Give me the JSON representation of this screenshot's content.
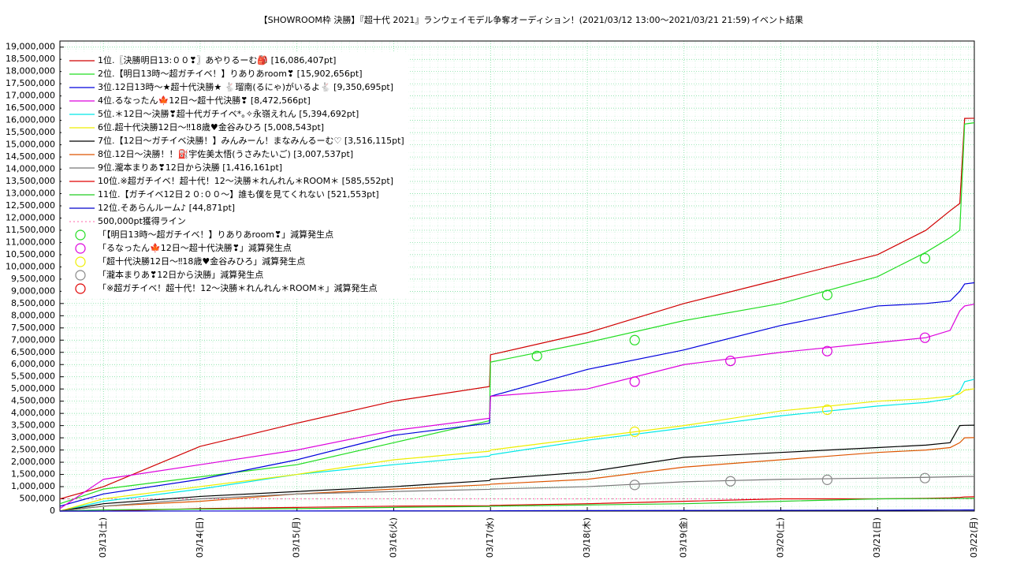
{
  "chart_data": {
    "type": "line",
    "title": "【SHOWROOM枠 決勝】『超十代 2021』ランウェイモデル争奪オーディション！(2021/03/12 13:00〜2021/03/21 21:59)",
    "subtitle": "イベント結果",
    "x": [
      12.55,
      13,
      14,
      15,
      16,
      16.99,
      17,
      18,
      19,
      20,
      21,
      21.5,
      21.75,
      21.85,
      21.9,
      22
    ],
    "xlim": [
      12.55,
      22
    ],
    "xticks": [
      {
        "value": 13,
        "label": "03/13(土)"
      },
      {
        "value": 14,
        "label": "03/14(日)"
      },
      {
        "value": 15,
        "label": "03/15(月)"
      },
      {
        "value": 16,
        "label": "03/16(火)"
      },
      {
        "value": 17,
        "label": "03/17(水)"
      },
      {
        "value": 18,
        "label": "03/18(木)"
      },
      {
        "value": 19,
        "label": "03/19(金)"
      },
      {
        "value": 20,
        "label": "03/20(土)"
      },
      {
        "value": 21,
        "label": "03/21(日)"
      },
      {
        "value": 22,
        "label": "03/22(月)"
      }
    ],
    "ylim": [
      0,
      19250000
    ],
    "yticks": [
      0,
      {
        "value": 500000,
        "label": "500,000"
      },
      {
        "value": 1000000,
        "label": "1,000,000"
      },
      {
        "value": 1500000,
        "label": "1,500,000"
      },
      {
        "value": 2000000,
        "label": "2,000,000"
      },
      {
        "value": 2500000,
        "label": "2,500,000"
      },
      {
        "value": 3000000,
        "label": "3,000,000"
      },
      {
        "value": 3500000,
        "label": "3,500,000"
      },
      {
        "value": 4000000,
        "label": "4,000,000"
      },
      {
        "value": 4500000,
        "label": "4,500,000"
      },
      {
        "value": 5000000,
        "label": "5,000,000"
      },
      {
        "value": 5500000,
        "label": "5,500,000"
      },
      {
        "value": 6000000,
        "label": "6,000,000"
      },
      {
        "value": 6500000,
        "label": "6,500,000"
      },
      {
        "value": 7000000,
        "label": "7,000,000"
      },
      {
        "value": 7500000,
        "label": "7,500,000"
      },
      {
        "value": 8000000,
        "label": "8,000,000"
      },
      {
        "value": 8500000,
        "label": "8,500,000"
      },
      {
        "value": 9000000,
        "label": "9,000,000"
      },
      {
        "value": 9500000,
        "label": "9,500,000"
      },
      {
        "value": 10000000,
        "label": "10,000,000"
      },
      {
        "value": 10500000,
        "label": "10,500,000"
      },
      {
        "value": 11000000,
        "label": "11,000,000"
      },
      {
        "value": 11500000,
        "label": "11,500,000"
      },
      {
        "value": 12000000,
        "label": "12,000,000"
      },
      {
        "value": 12500000,
        "label": "12,500,000"
      },
      {
        "value": 13000000,
        "label": "13,000,000"
      },
      {
        "value": 13500000,
        "label": "13,500,000"
      },
      {
        "value": 14000000,
        "label": "14,000,000"
      },
      {
        "value": 14500000,
        "label": "14,500,000"
      },
      {
        "value": 15000000,
        "label": "15,000,000"
      },
      {
        "value": 15500000,
        "label": "15,500,000"
      },
      {
        "value": 16000000,
        "label": "16,000,000"
      },
      {
        "value": 16500000,
        "label": "16,500,000"
      },
      {
        "value": 17000000,
        "label": "17,000,000"
      },
      {
        "value": 17500000,
        "label": "17,500,000"
      },
      {
        "value": 18000000,
        "label": "18,000,000"
      },
      {
        "value": 18500000,
        "label": "18,500,000"
      },
      {
        "value": 19000000,
        "label": "19,000,000"
      }
    ],
    "grid": true,
    "legend": "top-left",
    "series": [
      {
        "name": "1位.〖決勝明日13:００❣〗あやりるーむ🎒 [16,086,407pt]",
        "color": "#d00000",
        "values": [
          500000,
          1000000,
          2650000,
          3600000,
          4500000,
          5100000,
          6400000,
          7300000,
          8500000,
          9500000,
          10500000,
          11500000,
          12300000,
          12600000,
          16080000,
          16086407
        ]
      },
      {
        "name": "2位.【明日13時〜超ガチイベ！】りありあroom❣ [15,902,656pt]",
        "color": "#22dd22",
        "values": [
          300000,
          900000,
          1400000,
          1900000,
          2800000,
          3700000,
          6100000,
          6900000,
          7800000,
          8500000,
          9600000,
          10600000,
          11200000,
          11500000,
          15850000,
          15902656
        ]
      },
      {
        "name": "3位.12日13時〜★超十代決勝★ 🐇瑠南(るにゃ)がいるよ🐇 [9,350,695pt]",
        "color": "#0000dd",
        "values": [
          200000,
          700000,
          1300000,
          2100000,
          3100000,
          3600000,
          4700000,
          5800000,
          6600000,
          7600000,
          8400000,
          8500000,
          8600000,
          9000000,
          9300000,
          9350695
        ]
      },
      {
        "name": "4位.るなったん🍁12日〜超十代決勝❣ [8,472,566pt]",
        "color": "#dd00dd",
        "values": [
          100000,
          1300000,
          1900000,
          2500000,
          3300000,
          3800000,
          4700000,
          5000000,
          6000000,
          6500000,
          6900000,
          7100000,
          7400000,
          8200000,
          8400000,
          8472566
        ]
      },
      {
        "name": "5位.＊12日〜決勝❣超十代ガチイベ*｡✧永嶺えれん [5,394,692pt]",
        "color": "#00e8e8",
        "values": [
          0,
          400000,
          900000,
          1500000,
          1900000,
          2250000,
          2300000,
          2900000,
          3400000,
          3900000,
          4300000,
          4450000,
          4600000,
          4900000,
          5300000,
          5394692
        ]
      },
      {
        "name": "6位.超十代決勝12日〜‼18歳♥金谷みひろ [5,008,543pt]",
        "color": "#eeee00",
        "values": [
          0,
          500000,
          1000000,
          1500000,
          2100000,
          2450000,
          2500000,
          3000000,
          3500000,
          4100000,
          4500000,
          4600000,
          4700000,
          4800000,
          4950000,
          5008543
        ]
      },
      {
        "name": "7位.【12日〜ガチイベ決勝！】みんみーん！まなみんるーむ♡ [3,516,115pt]",
        "color": "#000000",
        "values": [
          0,
          300000,
          600000,
          800000,
          1000000,
          1250000,
          1300000,
          1600000,
          2200000,
          2400000,
          2600000,
          2700000,
          2800000,
          3500000,
          3510000,
          3516115
        ]
      },
      {
        "name": "8位.12日〜決勝！！⛽宇佐美太悟(うさみたいご) [3,007,537pt]",
        "color": "#dd5500",
        "values": [
          0,
          200000,
          400000,
          700000,
          900000,
          1080000,
          1100000,
          1300000,
          1800000,
          2100000,
          2400000,
          2500000,
          2600000,
          2800000,
          3000000,
          3007537
        ]
      },
      {
        "name": "9位.瀧本まりあ❣12日から決勝 [1,416,161pt]",
        "color": "#777777",
        "values": [
          0,
          200000,
          500000,
          700000,
          800000,
          890000,
          900000,
          1000000,
          1200000,
          1300000,
          1350000,
          1380000,
          1400000,
          1410000,
          1415000,
          1416161
        ]
      },
      {
        "name": "10位.※超ガチイベ！超十代！12〜決勝＊れんれん＊ROOM＊ [585,552pt]",
        "color": "#e00000",
        "values": [
          0,
          0,
          100000,
          150000,
          200000,
          220000,
          230000,
          300000,
          400000,
          500000,
          500000,
          520000,
          540000,
          560000,
          580000,
          585552
        ]
      },
      {
        "name": "11位.【ガチイベ12日２０:００〜】誰も僕を見てくれない [521,553pt]",
        "color": "#22cc22",
        "values": [
          0,
          50000,
          80000,
          100000,
          150000,
          190000,
          200000,
          250000,
          300000,
          400000,
          500000,
          510000,
          515000,
          518000,
          520000,
          521553
        ]
      },
      {
        "name": "12位.そあらんルーム♪ [44,871pt]",
        "color": "#0000cc",
        "values": [
          0,
          0,
          2000,
          5000,
          8000,
          10000,
          10000,
          20000,
          25000,
          30000,
          35000,
          40000,
          42000,
          43000,
          44000,
          44871
        ]
      }
    ],
    "threshold": {
      "name": "500,000pt獲得ライン",
      "value": 500000,
      "color": "#ff66aa"
    },
    "markers": [
      {
        "name": "「【明日13時〜超ガチイベ！】りありあroom❣」減算発生点",
        "color": "#22dd22",
        "x": [
          17.48,
          18.49,
          20.48,
          21.49
        ],
        "y": [
          6350000,
          7000000,
          8850000,
          10350000
        ]
      },
      {
        "name": "「るなったん🍁12日〜超十代決勝❣」減算発生点",
        "color": "#dd00dd",
        "x": [
          18.49,
          19.48,
          20.48,
          21.49
        ],
        "y": [
          5300000,
          6150000,
          6550000,
          7100000
        ]
      },
      {
        "name": "「超十代決勝12日〜‼18歳♥金谷みひろ」減算発生点",
        "color": "#eeee00",
        "x": [
          18.49,
          20.48
        ],
        "y": [
          3250000,
          4150000
        ]
      },
      {
        "name": "「瀧本まりあ❣12日から決勝」減算発生点",
        "color": "#888888",
        "x": [
          18.49,
          19.48,
          20.48,
          21.49
        ],
        "y": [
          1070000,
          1220000,
          1280000,
          1350000
        ]
      },
      {
        "name": "「※超ガチイベ！超十代！12〜決勝＊れんれん＊ROOM＊」減算発生点",
        "color": "#e00000",
        "x": [],
        "y": []
      }
    ]
  }
}
